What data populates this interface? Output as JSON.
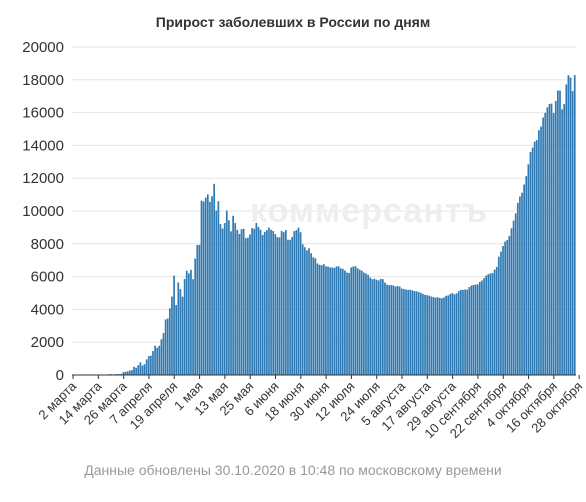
{
  "watermark": "коммерсантъ",
  "footer": "Данные обновлены 30.10.2020 в 10:48 по московскому времени",
  "colors": {
    "bar": "#2f7ab3",
    "axis": "#333333",
    "grid": "#e6e6e6"
  },
  "chart_data": {
    "type": "bar",
    "title": "Прирост заболевших в России по дням",
    "xlabel": "",
    "ylabel": "",
    "ylim": [
      0,
      20000
    ],
    "y_ticks": [
      0,
      2000,
      4000,
      6000,
      8000,
      10000,
      12000,
      14000,
      16000,
      18000,
      20000
    ],
    "grid": "horizontal",
    "x_tick_labels": [
      "2 марта",
      "14 марта",
      "26 марта",
      "7 апреля",
      "19 апреля",
      "1 мая",
      "13 мая",
      "25 мая",
      "6 июня",
      "18 июня",
      "30 июня",
      "12 июля",
      "24 июля",
      "5 августа",
      "17 августа",
      "29 августа",
      "10 сентября",
      "22 сентября",
      "4 октября",
      "16 октября",
      "28 октября"
    ],
    "x_tick_indices": [
      0,
      12,
      24,
      36,
      48,
      60,
      72,
      84,
      96,
      108,
      120,
      132,
      144,
      156,
      168,
      180,
      192,
      204,
      216,
      228,
      240
    ],
    "values": [
      0,
      0,
      1,
      2,
      0,
      2,
      6,
      3,
      4,
      0,
      7,
      11,
      14,
      16,
      28,
      19,
      30,
      52,
      53,
      33,
      52,
      54,
      57,
      71,
      182,
      196,
      228,
      270,
      302,
      500,
      440,
      601,
      771,
      582,
      658,
      954,
      1154,
      1175,
      1459,
      1786,
      1667,
      1786,
      2186,
      2558,
      3388,
      3448,
      4070,
      4785,
      6060,
      4268,
      5642,
      5236,
      4774,
      5849,
      6361,
      6198,
      6411,
      5841,
      7099,
      7933,
      7933,
      10633,
      10581,
      10817,
      11012,
      10559,
      10899,
      11656,
      10028,
      10598,
      9200,
      8926,
      9263,
      10028,
      9434,
      8764,
      9709,
      9263,
      8849,
      8599,
      8894,
      8915,
      8338,
      8371,
      8572,
      8952,
      8915,
      9268,
      9035,
      8863,
      8536,
      8726,
      8831,
      8985,
      8855,
      8779,
      8595,
      8404,
      8394,
      8779,
      8706,
      8835,
      8248,
      8246,
      8416,
      8779,
      8835,
      8987,
      8706,
      7972,
      7790,
      7600,
      7728,
      7425,
      7176,
      7113,
      6800,
      6719,
      6693,
      6760,
      6632,
      6611,
      6562,
      6556,
      6537,
      6615,
      6635,
      6509,
      6473,
      6368,
      6248,
      6222,
      6556,
      6611,
      6635,
      6509,
      6428,
      6361,
      6248,
      6195,
      6109,
      5940,
      5842,
      5871,
      5811,
      5765,
      5862,
      5843,
      5635,
      5509,
      5475,
      5482,
      5462,
      5394,
      5427,
      5395,
      5267,
      5241,
      5212,
      5189,
      5204,
      5159,
      5118,
      5102,
      5065,
      5010,
      4945,
      4892,
      4870,
      4838,
      4785,
      4748,
      4711,
      4744,
      4696,
      4676,
      4729,
      4829,
      4852,
      4941,
      4993,
      4921,
      4980,
      5110,
      5195,
      5185,
      5218,
      5205,
      5363,
      5449,
      5488,
      5509,
      5529,
      5670,
      5762,
      5905,
      6065,
      6148,
      6196,
      6215,
      6431,
      6595,
      7212,
      7523,
      7867,
      8135,
      8232,
      8481,
      8945,
      9412,
      9859,
      10499,
      10888,
      11115,
      11615,
      12126,
      12846,
      13592,
      13868,
      14231,
      14321,
      14922,
      15150,
      15700,
      15982,
      16319,
      16521,
      16550,
      15971,
      16710,
      17347,
      17340,
      16202,
      16521,
      17717,
      18283,
      18140,
      17312,
      18283
    ]
  }
}
